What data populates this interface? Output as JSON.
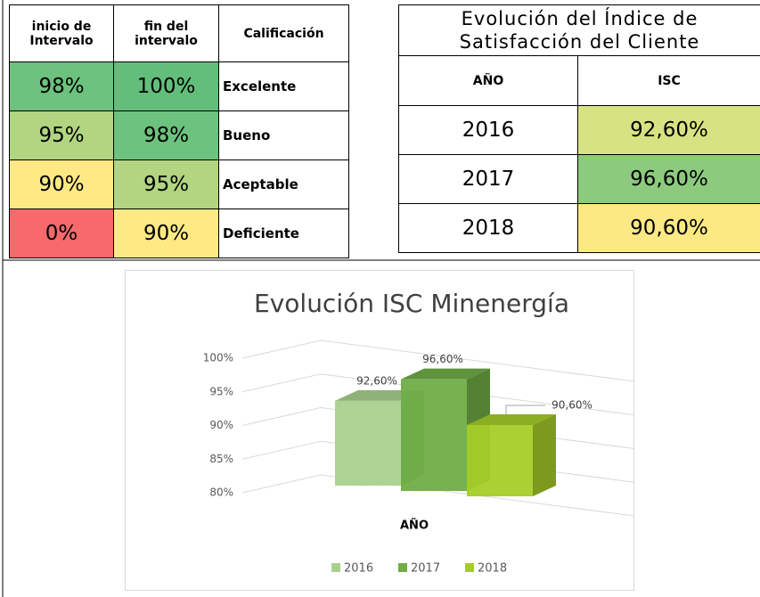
{
  "rating_table": {
    "headers": [
      "inicio de Intervalo",
      "fin del intervalo",
      "Calificación"
    ],
    "rows": [
      [
        "98%",
        "100%",
        "Excelente"
      ],
      [
        "95%",
        "98%",
        "Bueno"
      ],
      [
        "90%",
        "95%",
        "Aceptable"
      ],
      [
        "0%",
        "90%",
        "Deficiente"
      ]
    ]
  },
  "isc_table": {
    "title": "Evolución del Índice de Satisfacción del Cliente",
    "headers": [
      "AÑO",
      "ISC"
    ],
    "rows": [
      [
        "2016",
        "92,60%"
      ],
      [
        "2017",
        "96,60%"
      ],
      [
        "2018",
        "90,60%"
      ]
    ]
  },
  "chart_data": {
    "type": "bar3d",
    "title": "Evolución ISC Minenergía",
    "x_label": "AÑO",
    "series": [
      {
        "name": "2016",
        "color": "#a9d18e",
        "values": [
          92.6
        ],
        "value_labels": [
          "92,60%"
        ]
      },
      {
        "name": "2017",
        "color": "#70ad47",
        "values": [
          96.6
        ],
        "value_labels": [
          "96,60%"
        ]
      },
      {
        "name": "2018",
        "color": "#a5cd28",
        "values": [
          90.6
        ],
        "value_labels": [
          "90,60%"
        ]
      }
    ],
    "ylim": [
      80,
      100
    ],
    "yticks": [
      {
        "value": 80,
        "label": "80%"
      },
      {
        "value": 85,
        "label": "85%"
      },
      {
        "value": 90,
        "label": "90%"
      },
      {
        "value": 95,
        "label": "95%"
      },
      {
        "value": 100,
        "label": "100%"
      }
    ],
    "grid": true,
    "legend": "bottom"
  }
}
